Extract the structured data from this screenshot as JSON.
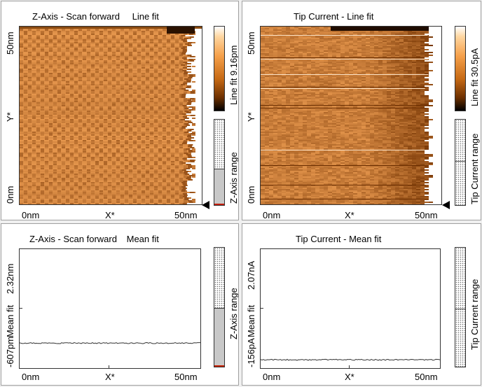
{
  "panels": {
    "z_line": {
      "title_left": "Z-Axis - Scan forward",
      "title_right": "Line fit",
      "y_top": "50nm",
      "y_mid": "Y*",
      "y_bottom": "0nm",
      "x_left": "0nm",
      "x_mid": "X*",
      "x_right": "50nm",
      "colorbar_label": "Line fit 9.16pm",
      "range_label": "Z-Axis range",
      "range_fill_fraction": 0.42
    },
    "tip_line": {
      "title": "Tip Current - Line fit",
      "y_top": "50nm",
      "y_mid": "Y*",
      "y_bottom": "0nm",
      "x_left": "0nm",
      "x_mid": "X*",
      "x_right": "50nm",
      "colorbar_label": "Line fit 30.5pA",
      "range_label": "Tip Current range",
      "range_mark_fraction": 0.52
    },
    "z_mean": {
      "title_left": "Z-Axis - Scan forward",
      "title_right": "Mean fit",
      "y_top": "2.32nm",
      "y_mid": "Mean fit",
      "y_bottom": "-607pm",
      "x_left": "0nm",
      "x_mid": "X*",
      "x_right": "50nm",
      "range_label": "Z-Axis range",
      "range_fill_fraction": 0.49,
      "line_level": 0.21
    },
    "tip_mean": {
      "title": "Tip Current - Mean fit",
      "y_top": "2.07nA",
      "y_mid": "Mean fit",
      "y_bottom": "-156pA",
      "x_left": "0nm",
      "x_mid": "X*",
      "x_right": "50nm",
      "range_label": "Tip Current range",
      "range_mark_fraction": 0.49,
      "line_level": 0.07
    }
  },
  "colors": {
    "scan_bright": "#f8a050",
    "scan_dark": "#7a3a05",
    "plot_line": "#333333"
  }
}
